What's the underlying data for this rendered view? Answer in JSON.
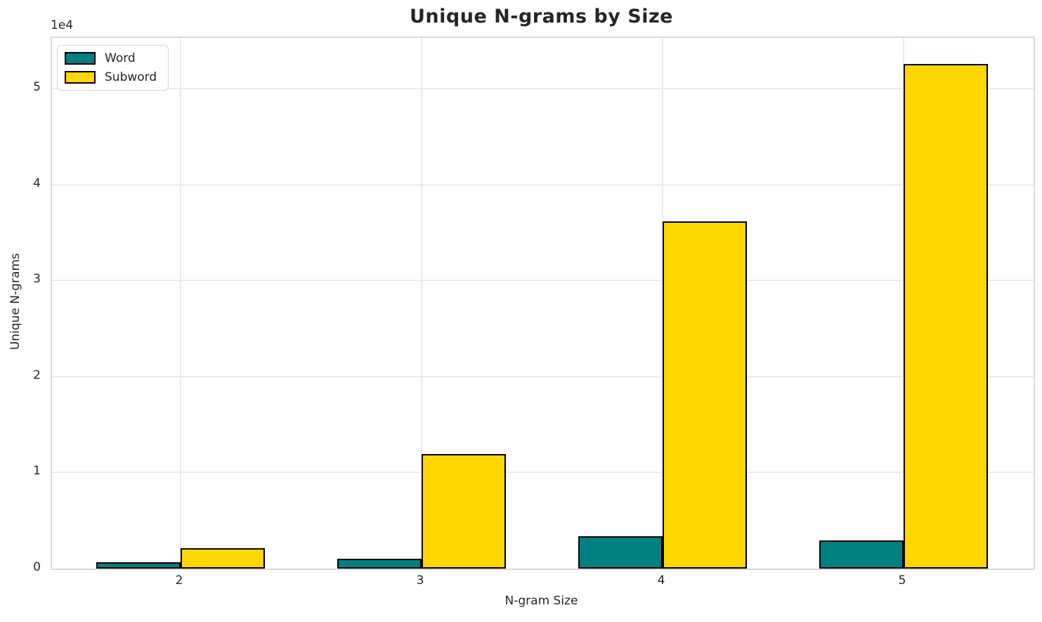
{
  "chart_data": {
    "type": "bar",
    "title": "Unique N-grams by Size",
    "xlabel": "N-gram Size",
    "ylabel": "Unique N-grams",
    "y_offset_label": "1e4",
    "categories": [
      "2",
      "3",
      "4",
      "5"
    ],
    "series": [
      {
        "name": "Word",
        "color": "#008080",
        "values": [
          650,
          1050,
          3400,
          2950
        ]
      },
      {
        "name": "Subword",
        "color": "#FFD700",
        "values": [
          2150,
          11900,
          36200,
          52550
        ]
      }
    ],
    "bar_edge_color": "#000000",
    "ylim": [
      0,
      55270
    ],
    "yticks": [
      0,
      10000,
      20000,
      30000,
      40000,
      50000
    ],
    "ytick_labels": [
      "0",
      "1",
      "2",
      "3",
      "4",
      "5"
    ],
    "grid": true,
    "legend_position": "upper left"
  }
}
